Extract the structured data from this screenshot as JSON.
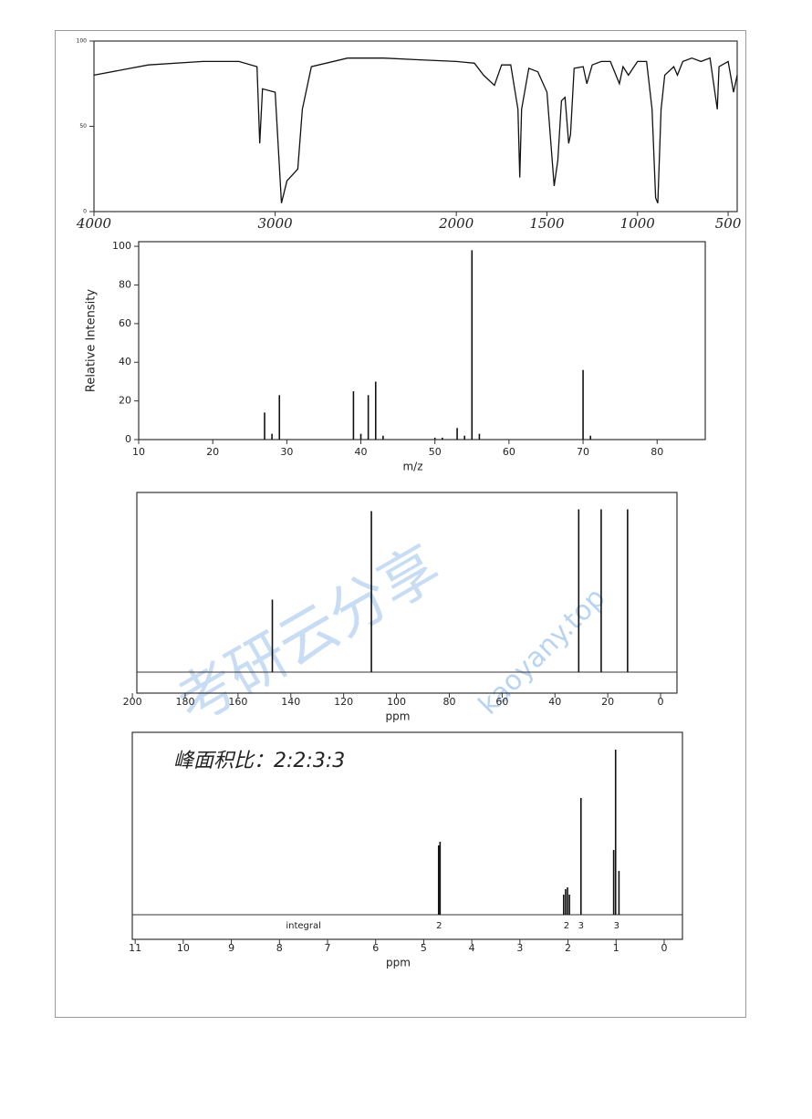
{
  "chart_data": [
    {
      "type": "line",
      "x": [
        4000,
        3700,
        3400,
        3200,
        3100,
        3085,
        3070,
        3000,
        2965,
        2935,
        2875,
        2850,
        2800,
        2600,
        2400,
        2200,
        2000,
        1900,
        1850,
        1790,
        1750,
        1700,
        1660,
        1650,
        1640,
        1600,
        1550,
        1500,
        1460,
        1440,
        1420,
        1400,
        1380,
        1370,
        1350,
        1300,
        1280,
        1250,
        1200,
        1150,
        1100,
        1080,
        1050,
        1000,
        950,
        920,
        900,
        888,
        870,
        850,
        800,
        780,
        750,
        700,
        650,
        600,
        560,
        550,
        500,
        470,
        450
      ],
      "values": [
        80,
        86,
        88,
        88,
        85,
        40,
        72,
        70,
        5,
        18,
        25,
        60,
        85,
        90,
        90,
        89,
        88,
        87,
        80,
        74,
        86,
        86,
        60,
        20,
        60,
        84,
        82,
        70,
        15,
        30,
        65,
        67,
        40,
        45,
        84,
        85,
        75,
        86,
        88,
        88,
        75,
        85,
        80,
        88,
        88,
        60,
        8,
        5,
        60,
        80,
        85,
        80,
        88,
        90,
        88,
        90,
        60,
        85,
        88,
        70,
        80
      ],
      "color": "#111111",
      "xlim": [
        4000,
        450
      ],
      "xticks": [
        4000,
        3000,
        2000,
        1500,
        1000,
        500
      ],
      "ylim": [
        0,
        100
      ],
      "yticks": [
        0,
        50,
        100
      ]
    },
    {
      "type": "bar",
      "x": [
        27,
        28,
        29,
        39,
        40,
        41,
        42,
        43,
        50,
        51,
        53,
        54,
        55,
        56,
        70,
        71
      ],
      "values": [
        14,
        3,
        23,
        25,
        3,
        23,
        30,
        2,
        1,
        1,
        6,
        2,
        98,
        3,
        36,
        2
      ],
      "color": "#111111",
      "xlabel": "m/z",
      "ylabel": "Relative Intensity",
      "xlim": [
        10,
        86.5
      ],
      "xticks": [
        10,
        20,
        30,
        40,
        50,
        60,
        70,
        80
      ],
      "ylim": [
        0,
        102.4
      ],
      "yticks": [
        0,
        20,
        40,
        60,
        80,
        100
      ]
    },
    {
      "type": "bar",
      "x": [
        147.0,
        109.5,
        31.0,
        22.5,
        12.5
      ],
      "values": [
        41,
        91,
        92,
        92,
        92
      ],
      "color": "#111111",
      "xlabel": "ppm",
      "xlim": [
        198.3,
        -6.2
      ],
      "xticks": [
        200,
        180,
        160,
        140,
        120,
        100,
        80,
        60,
        40,
        20,
        0
      ],
      "ylim": [
        0,
        100
      ]
    },
    {
      "type": "bar",
      "x": [
        4.69,
        4.66,
        2.09,
        2.05,
        2.01,
        1.97,
        1.73,
        1.05,
        1.01,
        0.94
      ],
      "values": [
        76,
        80,
        22,
        28,
        30,
        22,
        128,
        71,
        181,
        48
      ],
      "color": "#111111",
      "xlabel": "ppm",
      "annotation": "峰面积比：2:2:3:3",
      "integral_title": "integral",
      "integrals": [
        {
          "x": 4.68,
          "label": "2"
        },
        {
          "x": 2.03,
          "label": "2"
        },
        {
          "x": 1.73,
          "label": "3"
        },
        {
          "x": 0.99,
          "label": "3"
        }
      ],
      "xlim": [
        11.06,
        -0.38
      ],
      "xticks": [
        11,
        10,
        9,
        8,
        7,
        6,
        5,
        4,
        3,
        2,
        1,
        0
      ],
      "ylim": [
        0,
        198
      ]
    }
  ],
  "watermark": [
    "考研云分享",
    "kaoyany.top"
  ]
}
